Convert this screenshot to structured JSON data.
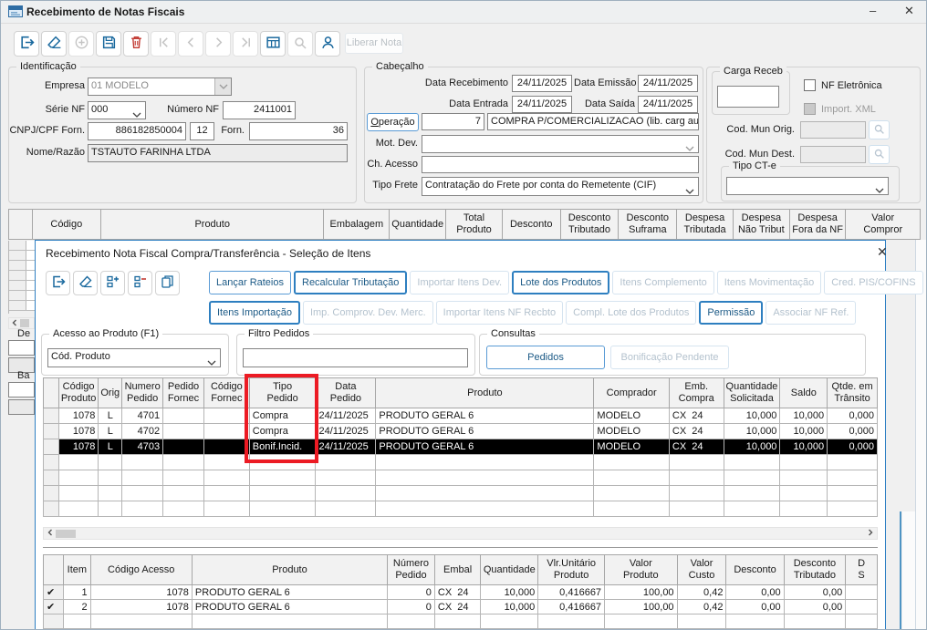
{
  "window": {
    "title": "Recebimento de Notas Fiscais",
    "minimize": "–",
    "close": "✕"
  },
  "toolbar": {
    "liberar_nota": "Liberar Nota"
  },
  "ident": {
    "legend": "Identificação",
    "empresa_label": "Empresa",
    "empresa": "01 MODELO",
    "serie_label": "Série NF",
    "serie": "000",
    "numero_label": "Número NF",
    "numero": "2411001",
    "cnpj_label": "CNPJ/CPF Forn.",
    "cnpj": "886182850004",
    "cnpj_dv": "12",
    "forn_label": "Forn.",
    "forn": "36",
    "nome_label": "Nome/Razão",
    "nome": "TSTAUTO FARINHA LTDA"
  },
  "cab": {
    "legend": "Cabeçalho",
    "data_receb_label": "Data Recebimento",
    "data_receb": "24/11/2025",
    "data_emissao_label": "Data Emissão",
    "data_emissao": "24/11/2025",
    "data_entrada_label": "Data Entrada",
    "data_entrada": "24/11/2025",
    "data_saida_label": "Data Saída",
    "data_saida": "24/11/2025",
    "operacao_label": "Operação",
    "operacao_cod": "7",
    "operacao_desc": "COMPRA P/COMERCIALIZACAO (lib. carg auto",
    "mot_dev_label": "Mot. Dev.",
    "ch_acesso_label": "Ch. Acesso",
    "tipo_frete_label": "Tipo Frete",
    "tipo_frete": "Contratação do Frete por conta do Remetente (CIF)"
  },
  "carga": {
    "legend": "Carga Receb",
    "nf_eletronica": "NF Eletrônica",
    "import_xml": "Import. XML",
    "cod_mun_orig": "Cod. Mun Orig.",
    "cod_mun_dest": "Cod. Mun Dest.",
    "tipo_cte": "Tipo CT-e"
  },
  "main_grid": {
    "columns": [
      "",
      "Código",
      "Produto",
      "Embalagem",
      "Quantidade",
      "Total\nProduto",
      "Desconto",
      "Desconto\nTributado",
      "Desconto\nSuframa",
      "Despesa\nTributada",
      "Despesa\nNão Tribut",
      "Despesa\nFora da NF",
      "Valor\nCompror"
    ],
    "rows": [],
    "empty_rows": 0
  },
  "left_panel": {
    "de": "De",
    "ba": "Ba"
  },
  "dialog": {
    "title": "Recebimento Nota Fiscal Compra/Transferência - Seleção de Itens",
    "close": "✕",
    "buttons_row1": [
      {
        "label": "Lançar Rateios",
        "enabled": true,
        "strong": false
      },
      {
        "label": "Recalcular Tributação",
        "enabled": true,
        "strong": true
      },
      {
        "label": "Importar Itens Dev.",
        "enabled": false,
        "strong": false
      },
      {
        "label": "Lote dos Produtos",
        "enabled": true,
        "strong": true
      },
      {
        "label": "Itens Complemento",
        "enabled": false,
        "strong": false
      },
      {
        "label": "Itens Movimentação",
        "enabled": false,
        "strong": false
      },
      {
        "label": "Cred. PIS/COFINS",
        "enabled": false,
        "strong": false
      }
    ],
    "buttons_row2": [
      {
        "label": "Itens Importação",
        "enabled": true,
        "strong": true
      },
      {
        "label": "Imp. Comprov. Dev. Merc.",
        "enabled": false,
        "strong": false
      },
      {
        "label": "Importar Itens NF Recbto",
        "enabled": false,
        "strong": false
      },
      {
        "label": "Compl. Lote dos Produtos",
        "enabled": false,
        "strong": false
      },
      {
        "label": "Permissão",
        "enabled": true,
        "strong": true
      },
      {
        "label": "Associar NF Ref.",
        "enabled": false,
        "strong": false
      }
    ],
    "acesso_legend": "Acesso ao Produto (F1)",
    "acesso_value": "Cód. Produto",
    "filtro_legend": "Filtro Pedidos",
    "consultas_legend": "Consultas",
    "consultas_buttons": [
      {
        "label": "Pedidos",
        "enabled": true,
        "strong": false
      },
      {
        "label": "Bonificação Pendente",
        "enabled": false,
        "strong": false
      }
    ],
    "pedidos_grid": {
      "columns": [
        "",
        "Código\nProduto",
        "Orig",
        "Numero\nPedido",
        "Pedido\nFornec",
        "Código\nFornec",
        "Tipo\nPedido",
        "Data\nPedido",
        "Produto",
        "Comprador",
        "Emb.\nCompra",
        "Quantidade\nSolicitada",
        "Saldo",
        "Qtde. em\nTrânsito"
      ],
      "rows": [
        {
          "cells": [
            "",
            "1078",
            "L",
            "4701",
            "",
            "",
            "Compra",
            "24/11/2025",
            "PRODUTO GERAL 6",
            "MODELO",
            "CX  24",
            "10,000",
            "10,000",
            "0,000"
          ],
          "selected": false
        },
        {
          "cells": [
            "",
            "1078",
            "L",
            "4702",
            "",
            "",
            "Compra",
            "24/11/2025",
            "PRODUTO GERAL 6",
            "MODELO",
            "CX  24",
            "10,000",
            "10,000",
            "0,000"
          ],
          "selected": false
        },
        {
          "cells": [
            "",
            "1078",
            "L",
            "4703",
            "",
            "",
            "Bonif.Incid.",
            "24/11/2025",
            "PRODUTO GERAL 6",
            "MODELO",
            "CX  24",
            "10,000",
            "10,000",
            "0,000"
          ],
          "selected": true
        }
      ],
      "empty_rows": 4
    },
    "itens_grid": {
      "columns": [
        "",
        "Item",
        "Código Acesso",
        "Produto",
        "Número\nPedido",
        "Embal",
        "Quantidade",
        "Vlr.Unitário\nProduto",
        "Valor\nProduto",
        "Valor\nCusto",
        "Desconto",
        "Desconto\nTributado",
        "D\nS"
      ],
      "rows": [
        {
          "cells": [
            "✔",
            "1",
            "1078",
            "PRODUTO GERAL 6",
            "0",
            "CX  24",
            "10,000",
            "0,416667",
            "100,00",
            "0,42",
            "0,00",
            "0,00",
            ""
          ],
          "selected": false
        },
        {
          "cells": [
            "✔",
            "2",
            "1078",
            "PRODUTO GERAL 6",
            "0",
            "CX  24",
            "10,000",
            "0,416667",
            "100,00",
            "0,42",
            "0,00",
            "0,00",
            ""
          ],
          "selected": false
        }
      ],
      "empty_rows": 1
    }
  }
}
